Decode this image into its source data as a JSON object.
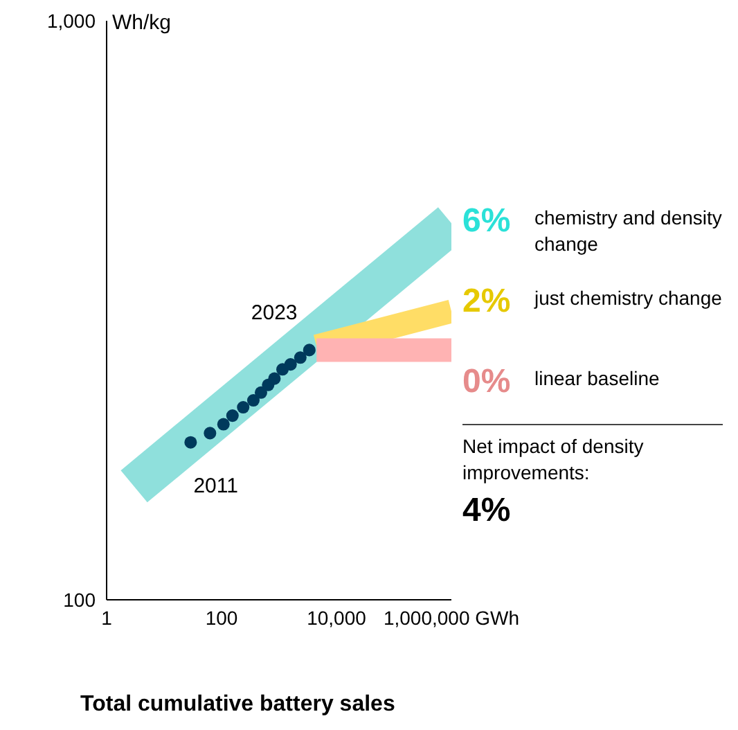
{
  "chart_data": {
    "type": "scatter",
    "xlabel": "Total cumulative battery sales",
    "ylabel": "Wh/kg",
    "log": "xy",
    "xlim": [
      1,
      1000000
    ],
    "ylim": [
      100,
      1000
    ],
    "xticks": [
      1,
      100,
      {
        "value": 10000,
        "label": "10,000"
      },
      {
        "value": 1000000,
        "label": "1,000,000 GWh"
      }
    ],
    "yticks": [
      100,
      {
        "value": 1000,
        "label": "1,000"
      }
    ],
    "legend": "right",
    "series": [
      {
        "type": "line",
        "marker": "none",
        "name": "chemistry and density change",
        "color": "#8fe0dc",
        "x": [
          3,
          1000000
        ],
        "values": [
          157,
          447
        ]
      },
      {
        "type": "line",
        "marker": "none",
        "name": "just chemistry change",
        "color": "#ffdd66",
        "x": [
          4500,
          1000000
        ],
        "values": [
          274,
          315
        ]
      },
      {
        "type": "line",
        "marker": "none",
        "name": "linear baseline",
        "color": "#ffb3b3",
        "x": [
          4500,
          1000000
        ],
        "values": [
          270,
          270
        ]
      },
      {
        "marker": "circle",
        "color": "#003a5c",
        "x": [
          29,
          63,
          108,
          155,
          238,
          358,
          486,
          647,
          833,
          1150,
          1590,
          2350,
          3370
        ],
        "values": [
          187,
          194,
          201,
          208,
          215,
          221,
          228,
          235,
          241,
          250,
          255,
          262,
          270
        ]
      }
    ],
    "annotations": [
      "6%",
      "2%",
      "0%",
      "Net impact of density improvements:",
      "4%",
      {
        "text": "2011",
        "x": 29,
        "y": 187
      },
      {
        "text": "2023",
        "x": 3370,
        "y": 270
      }
    ]
  }
}
